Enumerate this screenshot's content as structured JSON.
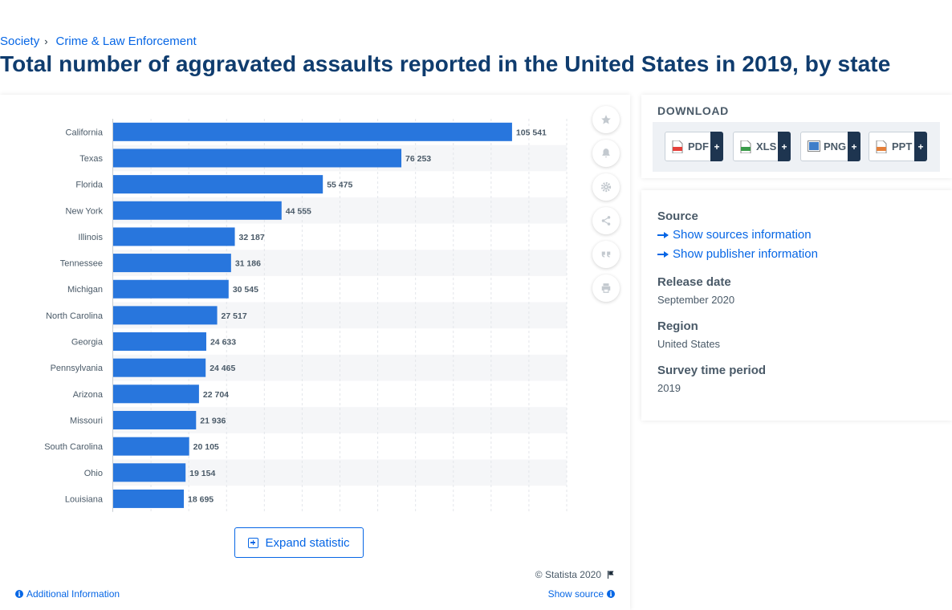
{
  "breadcrumb": {
    "items": [
      "Society",
      "Crime & Law Enforcement"
    ],
    "separator": "›"
  },
  "title": "Total number of aggravated assaults reported in the United States in 2019, by state",
  "chart_data": {
    "type": "bar",
    "orientation": "horizontal",
    "categories": [
      "California",
      "Texas",
      "Florida",
      "New York",
      "Illinois",
      "Tennessee",
      "Michigan",
      "North Carolina",
      "Georgia",
      "Pennsylvania",
      "Arizona",
      "Missouri",
      "South Carolina",
      "Ohio",
      "Louisiana"
    ],
    "values": [
      105541,
      76253,
      55475,
      44555,
      32187,
      31186,
      30545,
      27517,
      24633,
      24465,
      22704,
      21936,
      20105,
      19154,
      18695
    ],
    "value_labels": [
      "105 541",
      "76 253",
      "55 475",
      "44 555",
      "32 187",
      "31 186",
      "30 545",
      "27 517",
      "24 633",
      "24 465",
      "22 704",
      "21 936",
      "20 105",
      "19 154",
      "18 695"
    ],
    "xlim": [
      0,
      120000
    ],
    "grid": true,
    "bar_color": "#2876dd"
  },
  "tools": [
    "star-icon",
    "bell-icon",
    "gear-icon",
    "share-icon",
    "quote-icon",
    "print-icon"
  ],
  "expand_label": "Expand statistic",
  "copyright": "© Statista 2020",
  "additional_info": "Additional Information",
  "show_source": "Show source",
  "download": {
    "title": "DOWNLOAD",
    "buttons": [
      {
        "label": "PDF",
        "color": "#e5403a"
      },
      {
        "label": "XLS",
        "color": "#3b9b49"
      },
      {
        "label": "PNG",
        "color": "#3f7ec9"
      },
      {
        "label": "PPT",
        "color": "#e5803a"
      }
    ],
    "plus": "+"
  },
  "info": {
    "source_heading": "Source",
    "show_sources": "Show sources information",
    "show_publisher": "Show publisher information",
    "release_heading": "Release date",
    "release_value": "September 2020",
    "region_heading": "Region",
    "region_value": "United States",
    "survey_heading": "Survey time period",
    "survey_value": "2019"
  }
}
